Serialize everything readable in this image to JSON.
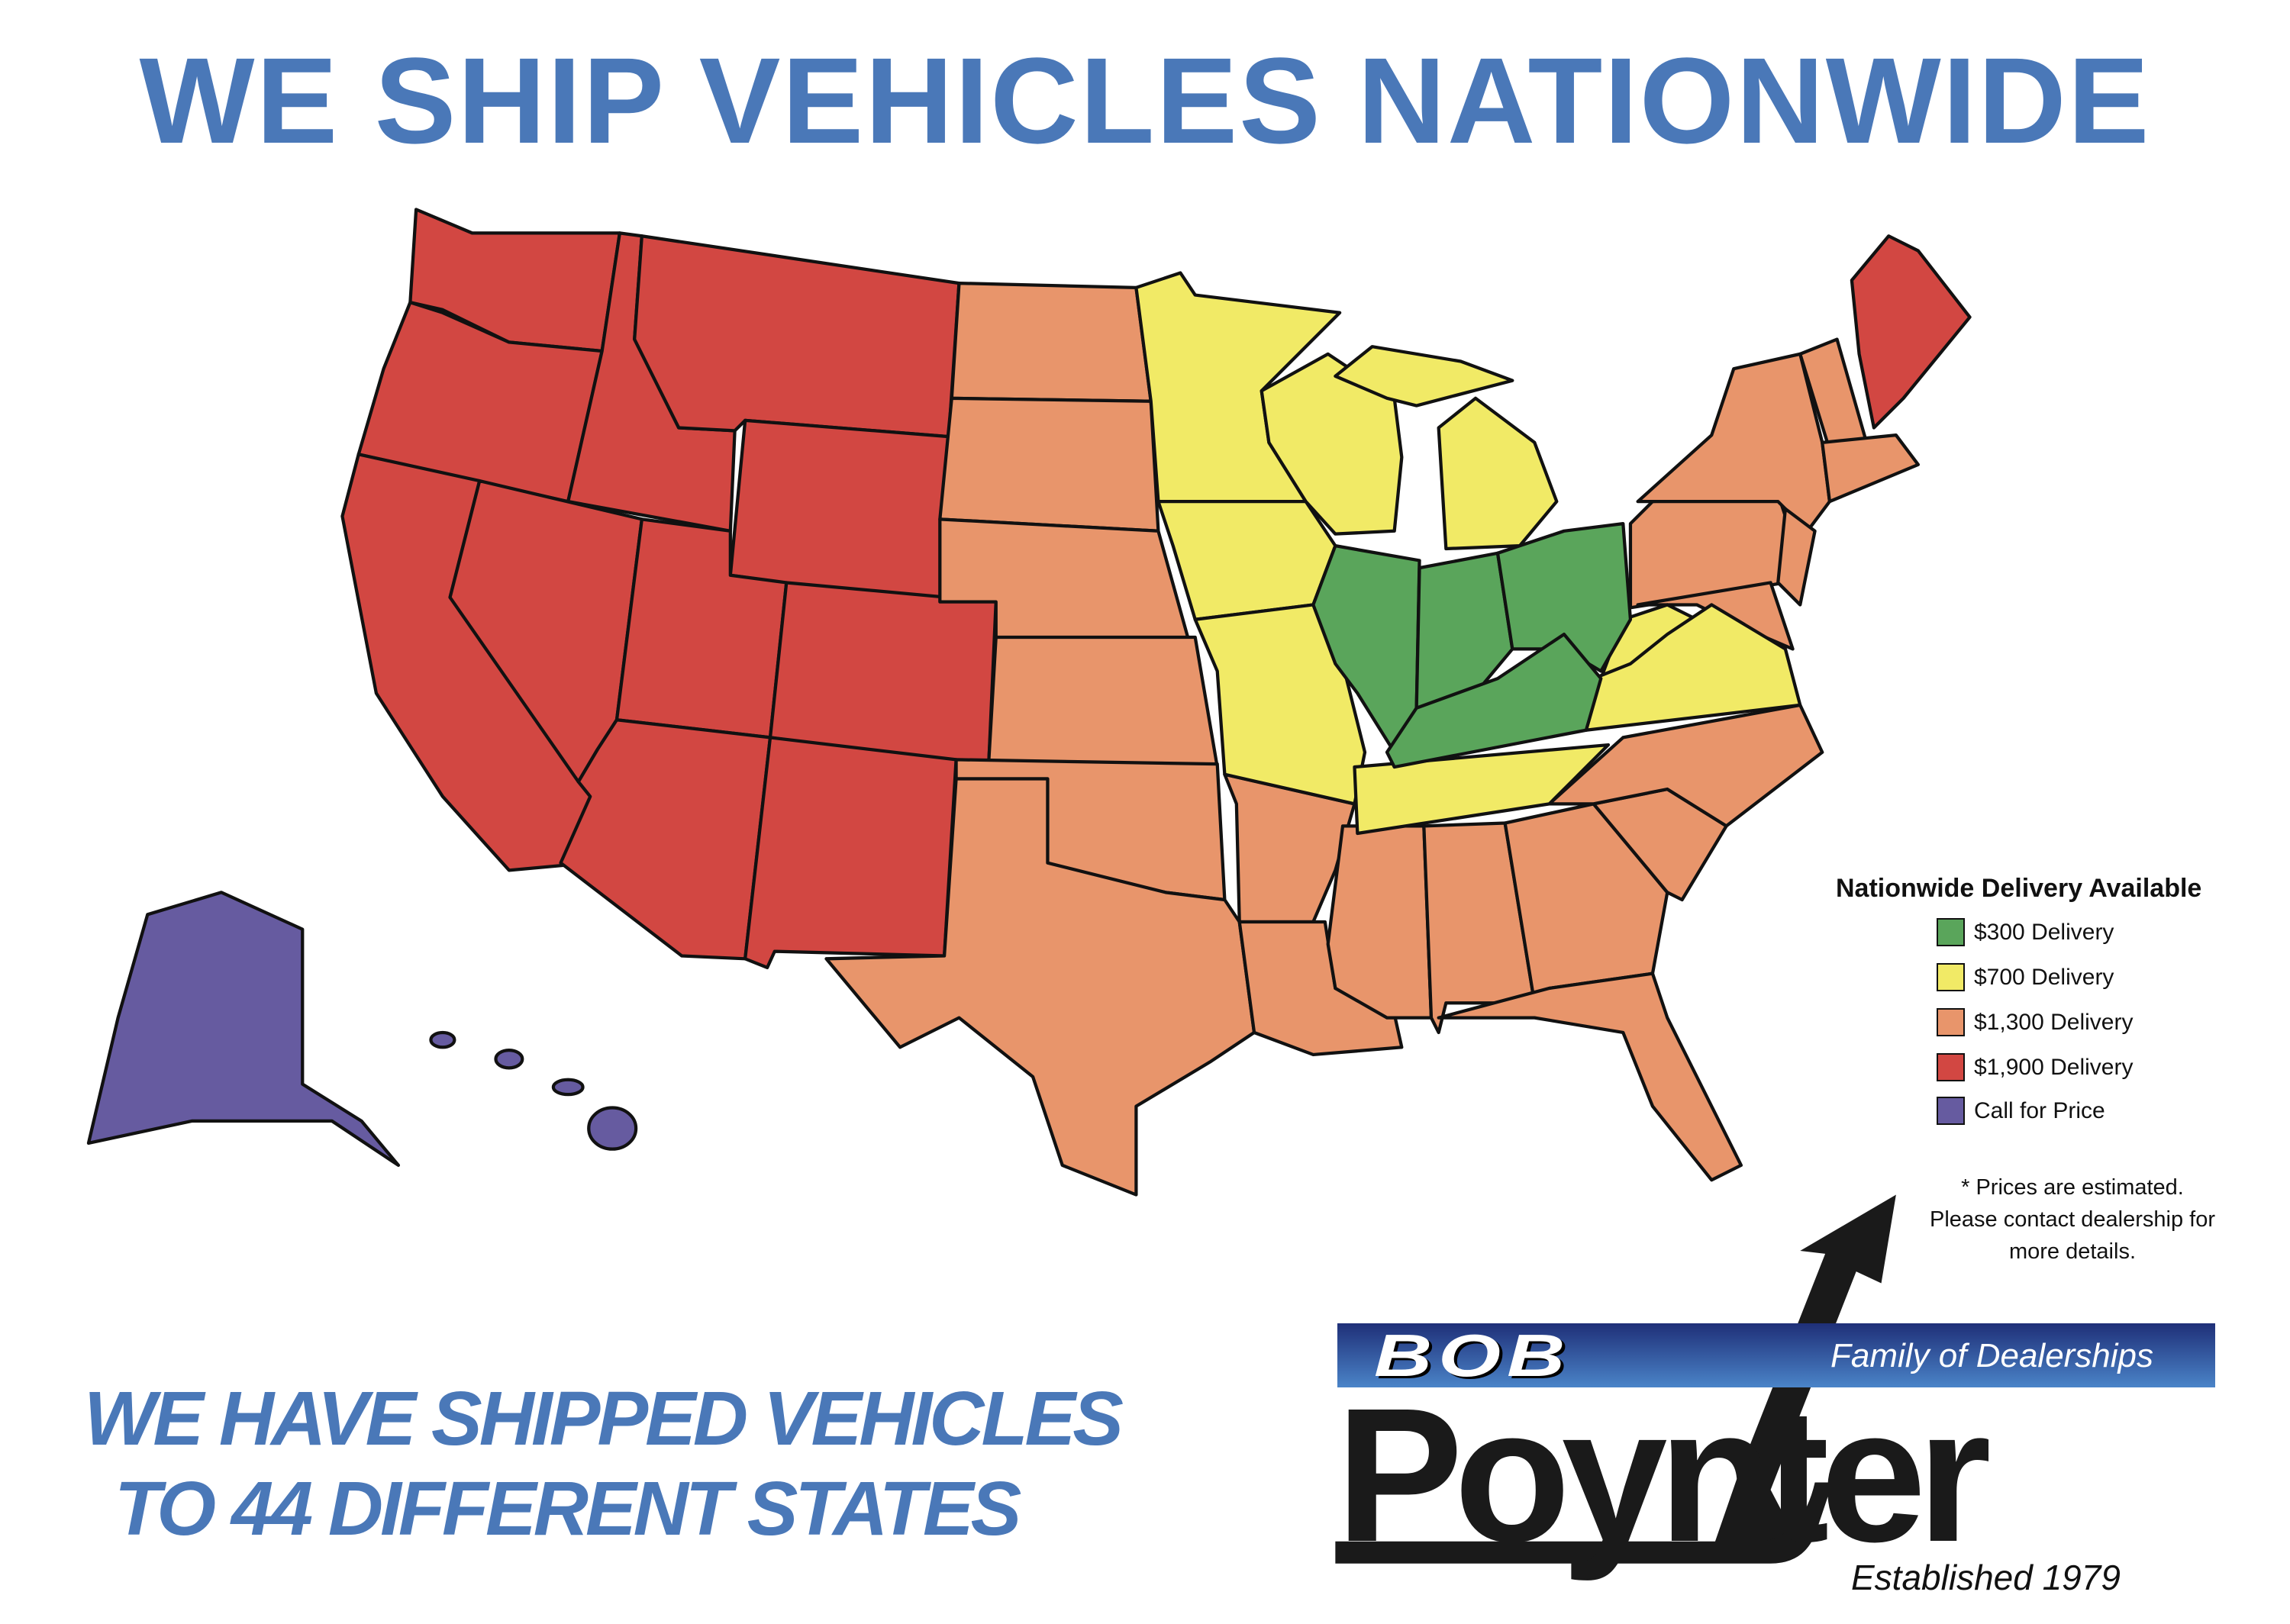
{
  "title": "WE SHIP VEHICLES NATIONWIDE",
  "colors": {
    "title_blue": "#4a78b8",
    "tier_300": "#5aa55b",
    "tier_700": "#f1ea66",
    "tier_1300": "#e8956b",
    "tier_1900": "#d24742",
    "tier_call": "#665ba0"
  },
  "legend": {
    "title": "Nationwide Delivery Available",
    "items": [
      {
        "tier": "300",
        "label": "$300 Delivery",
        "color": "#5aa55b"
      },
      {
        "tier": "700",
        "label": "$700 Delivery",
        "color": "#f1ea66"
      },
      {
        "tier": "1300",
        "label": "$1,300 Delivery",
        "color": "#e8956b"
      },
      {
        "tier": "1900",
        "label": "$1,900 Delivery",
        "color": "#d24742"
      },
      {
        "tier": "call",
        "label": "Call for Price",
        "color": "#665ba0"
      }
    ],
    "note": [
      "* Prices are estimated.",
      "Please contact dealership for",
      "more details."
    ]
  },
  "map": {
    "regions": [
      {
        "state": "WA",
        "tier": "1900"
      },
      {
        "state": "OR",
        "tier": "1900"
      },
      {
        "state": "CA",
        "tier": "1900"
      },
      {
        "state": "NV",
        "tier": "1900"
      },
      {
        "state": "ID",
        "tier": "1900"
      },
      {
        "state": "MT",
        "tier": "1900"
      },
      {
        "state": "WY",
        "tier": "1900"
      },
      {
        "state": "UT",
        "tier": "1900"
      },
      {
        "state": "CO",
        "tier": "1900"
      },
      {
        "state": "AZ",
        "tier": "1900"
      },
      {
        "state": "NM",
        "tier": "1900"
      },
      {
        "state": "ME",
        "tier": "1900"
      },
      {
        "state": "ND",
        "tier": "1300"
      },
      {
        "state": "SD",
        "tier": "1300"
      },
      {
        "state": "NE",
        "tier": "1300"
      },
      {
        "state": "KS",
        "tier": "1300"
      },
      {
        "state": "OK",
        "tier": "1300"
      },
      {
        "state": "TX",
        "tier": "1300"
      },
      {
        "state": "AR",
        "tier": "1300"
      },
      {
        "state": "LA",
        "tier": "1300"
      },
      {
        "state": "MS",
        "tier": "1300"
      },
      {
        "state": "AL",
        "tier": "1300"
      },
      {
        "state": "GA",
        "tier": "1300"
      },
      {
        "state": "FL",
        "tier": "1300"
      },
      {
        "state": "SC",
        "tier": "1300"
      },
      {
        "state": "NC",
        "tier": "1300"
      },
      {
        "state": "PA",
        "tier": "1300"
      },
      {
        "state": "NY",
        "tier": "1300"
      },
      {
        "state": "VT-NH",
        "tier": "1300"
      },
      {
        "state": "MA-CT-RI",
        "tier": "1300"
      },
      {
        "state": "NJ",
        "tier": "1300"
      },
      {
        "state": "MD-DE",
        "tier": "1300"
      },
      {
        "state": "MN",
        "tier": "700"
      },
      {
        "state": "IA",
        "tier": "700"
      },
      {
        "state": "MO",
        "tier": "700"
      },
      {
        "state": "WI",
        "tier": "700"
      },
      {
        "state": "MI",
        "tier": "700"
      },
      {
        "state": "MI-UP",
        "tier": "700"
      },
      {
        "state": "TN",
        "tier": "700"
      },
      {
        "state": "WV",
        "tier": "700"
      },
      {
        "state": "VA",
        "tier": "700"
      },
      {
        "state": "IL",
        "tier": "300"
      },
      {
        "state": "IN",
        "tier": "300"
      },
      {
        "state": "OH",
        "tier": "300"
      },
      {
        "state": "KY",
        "tier": "300"
      },
      {
        "state": "AK",
        "tier": "call"
      },
      {
        "state": "HI",
        "tier": "call"
      }
    ]
  },
  "shipped": [
    "WE HAVE SHIPPED VEHICLES",
    "TO 44 DIFFERENT STATES"
  ],
  "logo": {
    "bob": "BOB",
    "family": "Family of Dealerships",
    "name": "Poynter",
    "established": "Established 1979"
  }
}
